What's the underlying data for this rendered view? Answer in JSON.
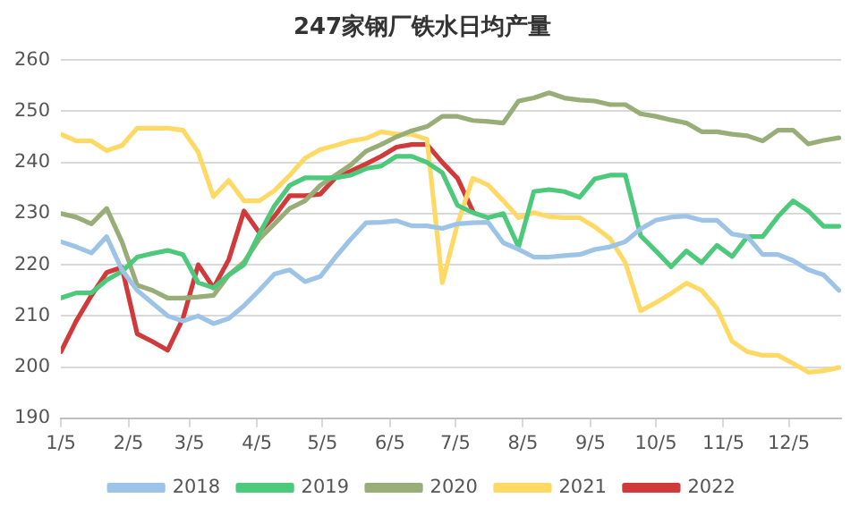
{
  "chart_data": {
    "type": "line",
    "title": "247家钢厂铁水日均产量",
    "x": [
      "--01-05",
      "--01-12",
      "--01-19",
      "--01-26",
      "--02-02",
      "--02-09",
      "--02-16",
      "--02-23",
      "--03-02",
      "--03-09",
      "--03-16",
      "--03-23",
      "--03-30",
      "--04-06",
      "--04-13",
      "--04-20",
      "--04-27",
      "--05-04",
      "--05-11",
      "--05-18",
      "--05-25",
      "--06-01",
      "--06-08",
      "--06-15",
      "--06-22",
      "--06-29",
      "--07-06",
      "--07-13",
      "--07-20",
      "--07-27",
      "--08-03",
      "--08-10",
      "--08-17",
      "--08-24",
      "--08-31",
      "--09-07",
      "--09-14",
      "--09-21",
      "--09-28",
      "--10-05",
      "--10-12",
      "--10-19",
      "--10-26",
      "--11-02",
      "--11-09",
      "--11-16",
      "--11-23",
      "--11-30",
      "--12-07",
      "--12-14",
      "--12-21",
      "--12-28"
    ],
    "xlim": [
      "--01-05",
      "--12-29"
    ],
    "xticks": [
      {
        "value": "--01-05",
        "label": "1/5"
      },
      {
        "value": "--02-05",
        "label": "2/5"
      },
      {
        "value": "--03-05",
        "label": "3/5"
      },
      {
        "value": "--04-05",
        "label": "4/5"
      },
      {
        "value": "--05-05",
        "label": "5/5"
      },
      {
        "value": "--06-05",
        "label": "6/5"
      },
      {
        "value": "--07-05",
        "label": "7/5"
      },
      {
        "value": "--08-05",
        "label": "8/5"
      },
      {
        "value": "--09-05",
        "label": "9/5"
      },
      {
        "value": "--10-05",
        "label": "10/5"
      },
      {
        "value": "--11-05",
        "label": "11/5"
      },
      {
        "value": "--12-05",
        "label": "12/5"
      }
    ],
    "ylim": [
      190,
      260
    ],
    "yticks": [
      190,
      200,
      210,
      220,
      230,
      240,
      250,
      260
    ],
    "grid": "y",
    "legend": "bottom",
    "line_style": "solid",
    "series": [
      {
        "name": "2018",
        "color": "#9dc3e6",
        "values": [
          224.5,
          223.5,
          222.3,
          225.5,
          219,
          215,
          212.5,
          210,
          209,
          210,
          208.5,
          209.5,
          212,
          215,
          218.2,
          219,
          216.7,
          217.7,
          221.5,
          225,
          228.2,
          228.3,
          228.6,
          227.6,
          227.6,
          227.1,
          228,
          228.2,
          228.3,
          224.3,
          223,
          221.5,
          221.5,
          221.8,
          222,
          223,
          223.5,
          224.5,
          227,
          228.7,
          229.3,
          229.5,
          228.7,
          228.7,
          226,
          225.5,
          222,
          222,
          220.8,
          219,
          218,
          215
        ]
      },
      {
        "name": "2019",
        "color": "#4cc97a",
        "values": [
          213.5,
          214.5,
          214.5,
          217,
          218.7,
          221.5,
          222.2,
          222.8,
          222,
          216.5,
          215.5,
          218,
          220,
          226,
          231.5,
          235.5,
          237,
          237,
          237,
          237.5,
          238.8,
          239.3,
          241.2,
          241.2,
          240,
          238,
          231.6,
          230.2,
          229.2,
          230,
          223.5,
          234.3,
          234.7,
          234.3,
          233.2,
          236.8,
          237.5,
          237.5,
          225.7,
          222.7,
          219.6,
          222.7,
          220.4,
          223.8,
          221.6,
          225.5,
          225.5,
          229.4,
          232.5,
          230.5,
          227.5,
          227.5
        ]
      },
      {
        "name": "2020",
        "color": "#98ad78",
        "values": [
          230,
          229.3,
          228,
          231,
          224.5,
          216,
          215,
          213.5,
          213.5,
          213.7,
          214,
          218,
          220.5,
          225,
          228,
          231,
          232.5,
          235.5,
          237.5,
          239.5,
          242.2,
          243.5,
          245,
          246.2,
          247,
          249,
          249,
          248.2,
          248,
          247.7,
          252,
          252.6,
          253.6,
          252.6,
          252.2,
          252,
          251.3,
          251.3,
          249.5,
          249,
          248.3,
          247.7,
          246,
          246,
          245.5,
          245.2,
          244.2,
          246.3,
          246.3,
          243.6,
          244.3,
          244.8
        ]
      },
      {
        "name": "2021",
        "color": "#ffd966",
        "values": [
          245.5,
          244.2,
          244.2,
          242.3,
          243.3,
          246.7,
          246.7,
          246.7,
          246.3,
          242,
          233.3,
          236.5,
          232.5,
          232.5,
          234.5,
          237.5,
          240.8,
          242.5,
          243.3,
          244.2,
          244.7,
          246,
          245.5,
          245.5,
          244.5,
          216.5,
          228,
          236.9,
          235.6,
          232.5,
          229.2,
          230.2,
          229.4,
          229.2,
          229.2,
          227.4,
          225.1,
          220.4,
          211,
          212.6,
          214.4,
          216.4,
          215,
          211.5,
          205,
          203,
          202.3,
          202.3,
          200.7,
          199,
          199.3,
          199.9
        ]
      },
      {
        "name": "2022",
        "color": "#d13a3a",
        "values": [
          203,
          209,
          214,
          218.5,
          219.5,
          206.5,
          205,
          203.3,
          209.5,
          220,
          215.5,
          221,
          230.5,
          226.3,
          229.5,
          233.5,
          233.5,
          233.8,
          237,
          238.3,
          239.7,
          241.2,
          243,
          243.5,
          243.5,
          240,
          236.9,
          230.5,
          null,
          null,
          null,
          null,
          null,
          null,
          null,
          null,
          null,
          null,
          null,
          null,
          null,
          null,
          null,
          null,
          null,
          null,
          null,
          null,
          null,
          null,
          null,
          null
        ]
      }
    ]
  }
}
